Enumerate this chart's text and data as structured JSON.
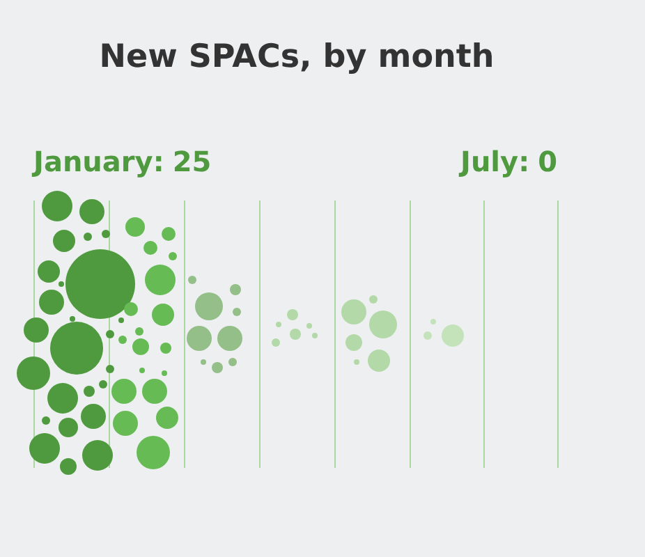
{
  "chart_data": {
    "type": "other",
    "title": "New SPACs, by month",
    "categories": [
      "January",
      "July"
    ],
    "values": [
      25,
      0
    ],
    "data_labels": true,
    "annotations": [
      ":",
      ":"
    ],
    "color": "#4f9a3f"
  }
}
